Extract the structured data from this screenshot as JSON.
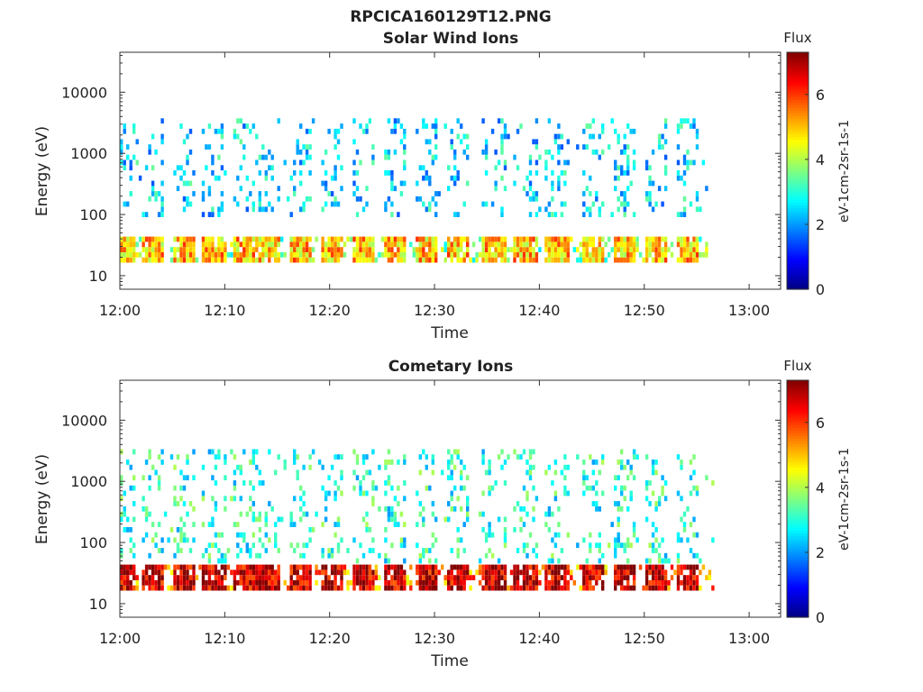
{
  "figure_title": "RPCICA160129T12.PNG",
  "chart_data": [
    {
      "type": "heatmap",
      "title": "Solar Wind Ions",
      "xlabel": "Time",
      "ylabel": "Energy (eV)",
      "y_scale": "log",
      "xlim": [
        "12:00",
        "13:03"
      ],
      "ylim": [
        6,
        45000
      ],
      "x_ticks": [
        "12:00",
        "12:10",
        "12:20",
        "12:30",
        "12:40",
        "12:50",
        "13:00"
      ],
      "y_ticks": [
        "10",
        "100",
        "1000",
        "10000"
      ],
      "colorbar": {
        "label": "Flux",
        "unit": "eV-1cm-2sr-1s-1",
        "range": [
          0,
          7.3
        ],
        "ticks": [
          "0",
          "2",
          "4",
          "6"
        ],
        "colormap": "jet"
      },
      "grid": false,
      "sweep_times_min": [
        0.2,
        3,
        6,
        8.8,
        11.8,
        14,
        17,
        20,
        23,
        26,
        29,
        32,
        35.5,
        38.5,
        41.5,
        45,
        48,
        51,
        54
      ],
      "time_end_min": 56,
      "low_band_eV": [
        18,
        45
      ],
      "typical_low_band_flux": 5,
      "high_band_eV": [
        100,
        4000
      ],
      "typical_high_band_flux": 2.5
    },
    {
      "type": "heatmap",
      "title": "Cometary Ions",
      "xlabel": "Time",
      "ylabel": "Energy (eV)",
      "y_scale": "log",
      "xlim": [
        "12:00",
        "13:03"
      ],
      "ylim": [
        6,
        45000
      ],
      "x_ticks": [
        "12:00",
        "12:10",
        "12:20",
        "12:30",
        "12:40",
        "12:50",
        "13:00"
      ],
      "y_ticks": [
        "10",
        "100",
        "1000",
        "10000"
      ],
      "colorbar": {
        "label": "Flux",
        "unit": "eV-1cm-2sr-1s-1",
        "range": [
          0,
          7.3
        ],
        "ticks": [
          "0",
          "2",
          "4",
          "6"
        ],
        "colormap": "jet"
      },
      "grid": false,
      "sweep_times_min": [
        0.2,
        3,
        6,
        8.8,
        11.8,
        14,
        17,
        20,
        23,
        26,
        29,
        32,
        35.5,
        38.5,
        41.5,
        45,
        48,
        51,
        54
      ],
      "time_end_min": 56.5,
      "low_band_eV": [
        18,
        45
      ],
      "typical_low_band_flux": 6.8,
      "high_band_eV": [
        50,
        3500
      ],
      "typical_high_band_flux": 3
    }
  ]
}
